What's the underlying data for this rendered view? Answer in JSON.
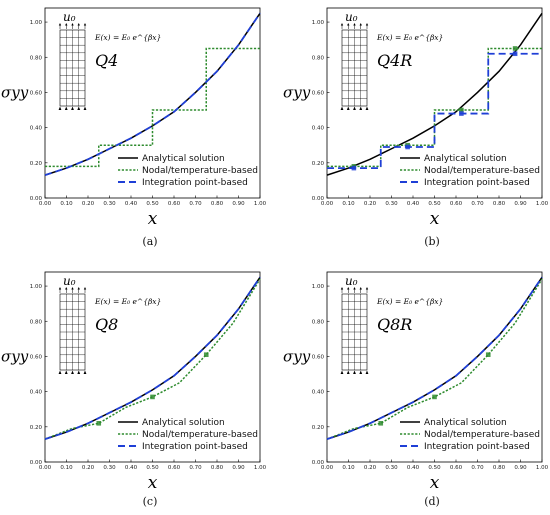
{
  "figure": {
    "legend_entries": [
      "Analytical solution",
      "Nodal/temperature-based",
      "Integration point-based"
    ],
    "colors": {
      "analytical": "#000000",
      "nodal": "#2e8b2e",
      "integration": "#1f3fd6"
    }
  },
  "chart_data": [
    {
      "type": "line",
      "caption": "(a)",
      "inset_label": "Q4",
      "formula": "E(x) = E₀ e^{βx}",
      "mesh_label": "u₀",
      "xlabel": "x",
      "ylabel": "σyy",
      "xlim": [
        0,
        1
      ],
      "ylim": [
        0,
        1.08
      ],
      "xticks": [
        "0.00",
        "0.10",
        "0.20",
        "0.30",
        "0.40",
        "0.50",
        "0.60",
        "0.70",
        "0.80",
        "0.90",
        "1.00"
      ],
      "yticks": [
        "0.00",
        "0.20",
        "0.40",
        "0.60",
        "0.80",
        "1.00"
      ],
      "legend_position": "bottom-right",
      "grid": false,
      "series": [
        {
          "name": "Analytical solution",
          "style": "solid",
          "color": "#000000",
          "x": [
            0,
            0.1,
            0.2,
            0.3,
            0.4,
            0.5,
            0.6,
            0.7,
            0.8,
            0.9,
            1.0
          ],
          "y": [
            0.13,
            0.17,
            0.22,
            0.28,
            0.34,
            0.41,
            0.49,
            0.6,
            0.72,
            0.87,
            1.05
          ]
        },
        {
          "name": "Nodal/temperature-based",
          "style": "dotted",
          "color": "#2e8b2e",
          "x": [
            0,
            0.25,
            0.25,
            0.5,
            0.5,
            0.75,
            0.75,
            1.0
          ],
          "y": [
            0.18,
            0.18,
            0.3,
            0.3,
            0.5,
            0.5,
            0.85,
            0.85
          ]
        },
        {
          "name": "Integration point-based",
          "style": "dashed",
          "color": "#1f3fd6",
          "x": [
            0,
            0.1,
            0.2,
            0.3,
            0.4,
            0.5,
            0.6,
            0.7,
            0.8,
            0.9,
            1.0
          ],
          "y": [
            0.13,
            0.17,
            0.22,
            0.28,
            0.34,
            0.41,
            0.49,
            0.6,
            0.72,
            0.87,
            1.05
          ]
        }
      ]
    },
    {
      "type": "line",
      "caption": "(b)",
      "inset_label": "Q4R",
      "formula": "E(x) = E₀ e^{βx}",
      "mesh_label": "u₀",
      "xlabel": "x",
      "ylabel": "σyy",
      "xlim": [
        0,
        1
      ],
      "ylim": [
        0,
        1.08
      ],
      "xticks": [
        "0.00",
        "0.10",
        "0.20",
        "0.30",
        "0.40",
        "0.50",
        "0.60",
        "0.70",
        "0.80",
        "0.90",
        "1.00"
      ],
      "yticks": [
        "0.00",
        "0.20",
        "0.40",
        "0.60",
        "0.80",
        "1.00"
      ],
      "legend_position": "bottom-right",
      "grid": false,
      "series": [
        {
          "name": "Analytical solution",
          "style": "solid",
          "color": "#000000",
          "x": [
            0,
            0.1,
            0.2,
            0.3,
            0.4,
            0.5,
            0.6,
            0.7,
            0.8,
            0.9,
            1.0
          ],
          "y": [
            0.13,
            0.17,
            0.22,
            0.28,
            0.34,
            0.41,
            0.49,
            0.6,
            0.72,
            0.87,
            1.05
          ]
        },
        {
          "name": "Nodal/temperature-based",
          "style": "dotted",
          "color": "#2e8b2e",
          "x": [
            0,
            0.25,
            0.25,
            0.5,
            0.5,
            0.75,
            0.75,
            1.0
          ],
          "y": [
            0.18,
            0.18,
            0.3,
            0.3,
            0.5,
            0.5,
            0.85,
            0.85
          ],
          "markers_x": [
            0.125,
            0.375,
            0.625,
            0.875
          ],
          "markers_y": [
            0.18,
            0.3,
            0.5,
            0.85
          ]
        },
        {
          "name": "Integration point-based",
          "style": "dashed",
          "color": "#1f3fd6",
          "x": [
            0,
            0.25,
            0.25,
            0.5,
            0.5,
            0.75,
            0.75,
            1.0
          ],
          "y": [
            0.17,
            0.17,
            0.29,
            0.29,
            0.48,
            0.48,
            0.82,
            0.82
          ],
          "markers_x": [
            0.125,
            0.375,
            0.625,
            0.875
          ],
          "markers_y": [
            0.17,
            0.29,
            0.48,
            0.82
          ]
        }
      ]
    },
    {
      "type": "line",
      "caption": "(c)",
      "inset_label": "Q8",
      "formula": "E(x) = E₀ e^{βx}",
      "mesh_label": "u₀",
      "xlabel": "x",
      "ylabel": "σyy",
      "xlim": [
        0,
        1
      ],
      "ylim": [
        0,
        1.08
      ],
      "xticks": [
        "0.00",
        "0.10",
        "0.20",
        "0.30",
        "0.40",
        "0.50",
        "0.60",
        "0.70",
        "0.80",
        "0.90",
        "1.00"
      ],
      "yticks": [
        "0.00",
        "0.20",
        "0.40",
        "0.60",
        "0.80",
        "1.00"
      ],
      "legend_position": "bottom-right",
      "grid": false,
      "series": [
        {
          "name": "Analytical solution",
          "style": "solid",
          "color": "#000000",
          "x": [
            0,
            0.1,
            0.2,
            0.3,
            0.4,
            0.5,
            0.6,
            0.7,
            0.8,
            0.9,
            1.0
          ],
          "y": [
            0.13,
            0.17,
            0.22,
            0.28,
            0.34,
            0.41,
            0.49,
            0.6,
            0.72,
            0.87,
            1.05
          ]
        },
        {
          "name": "Nodal/temperature-based",
          "style": "dotted",
          "color": "#2e8b2e",
          "x": [
            0,
            0.125,
            0.25,
            0.375,
            0.5,
            0.625,
            0.75,
            0.875,
            1.0
          ],
          "y": [
            0.13,
            0.19,
            0.22,
            0.31,
            0.37,
            0.45,
            0.61,
            0.79,
            1.04
          ],
          "markers_x": [
            0.25,
            0.5,
            0.75
          ],
          "markers_y": [
            0.22,
            0.37,
            0.61
          ]
        },
        {
          "name": "Integration point-based",
          "style": "dashed",
          "color": "#1f3fd6",
          "x": [
            0,
            0.1,
            0.2,
            0.3,
            0.4,
            0.5,
            0.6,
            0.7,
            0.8,
            0.9,
            1.0
          ],
          "y": [
            0.13,
            0.17,
            0.22,
            0.28,
            0.34,
            0.41,
            0.49,
            0.6,
            0.72,
            0.87,
            1.05
          ]
        }
      ]
    },
    {
      "type": "line",
      "caption": "(d)",
      "inset_label": "Q8R",
      "formula": "E(x) = E₀ e^{βx}",
      "mesh_label": "u₀",
      "xlabel": "x",
      "ylabel": "σyy",
      "xlim": [
        0,
        1
      ],
      "ylim": [
        0,
        1.08
      ],
      "xticks": [
        "0.00",
        "0.10",
        "0.20",
        "0.30",
        "0.40",
        "0.50",
        "0.60",
        "0.70",
        "0.80",
        "0.90",
        "1.00"
      ],
      "yticks": [
        "0.00",
        "0.20",
        "0.40",
        "0.60",
        "0.80",
        "1.00"
      ],
      "legend_position": "bottom-right",
      "grid": false,
      "series": [
        {
          "name": "Analytical solution",
          "style": "solid",
          "color": "#000000",
          "x": [
            0,
            0.1,
            0.2,
            0.3,
            0.4,
            0.5,
            0.6,
            0.7,
            0.8,
            0.9,
            1.0
          ],
          "y": [
            0.13,
            0.17,
            0.22,
            0.28,
            0.34,
            0.41,
            0.49,
            0.6,
            0.72,
            0.87,
            1.05
          ]
        },
        {
          "name": "Nodal/temperature-based",
          "style": "dotted",
          "color": "#2e8b2e",
          "x": [
            0,
            0.125,
            0.25,
            0.375,
            0.5,
            0.625,
            0.75,
            0.875,
            1.0
          ],
          "y": [
            0.13,
            0.19,
            0.22,
            0.31,
            0.37,
            0.45,
            0.61,
            0.79,
            1.04
          ],
          "markers_x": [
            0.25,
            0.5,
            0.75
          ],
          "markers_y": [
            0.22,
            0.37,
            0.61
          ]
        },
        {
          "name": "Integration point-based",
          "style": "dashed",
          "color": "#1f3fd6",
          "x": [
            0,
            0.1,
            0.2,
            0.3,
            0.4,
            0.5,
            0.6,
            0.7,
            0.8,
            0.9,
            1.0
          ],
          "y": [
            0.13,
            0.17,
            0.22,
            0.28,
            0.34,
            0.41,
            0.49,
            0.6,
            0.72,
            0.87,
            1.05
          ]
        }
      ]
    }
  ]
}
